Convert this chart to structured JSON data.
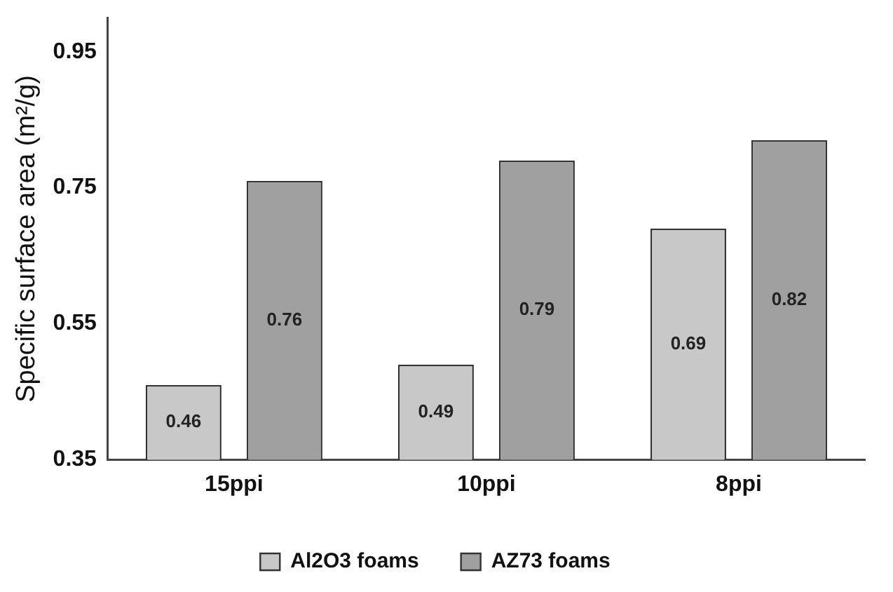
{
  "chart_data": {
    "type": "bar",
    "ylabel": "Specific surface area (m²/g)",
    "categories": [
      "15ppi",
      "10ppi",
      "8ppi"
    ],
    "series": [
      {
        "name": "Al2O3 foams",
        "color": "#c8c8c8",
        "values": [
          0.46,
          0.49,
          0.69
        ]
      },
      {
        "name": "AZ73 foams",
        "color": "#a0a0a0",
        "values": [
          0.76,
          0.79,
          0.82
        ]
      }
    ],
    "ylim": [
      0.35,
      1.0
    ],
    "yticks": [
      0.35,
      0.55,
      0.75,
      0.95
    ],
    "grid": false,
    "legend": "bottom",
    "data_labels": true
  }
}
